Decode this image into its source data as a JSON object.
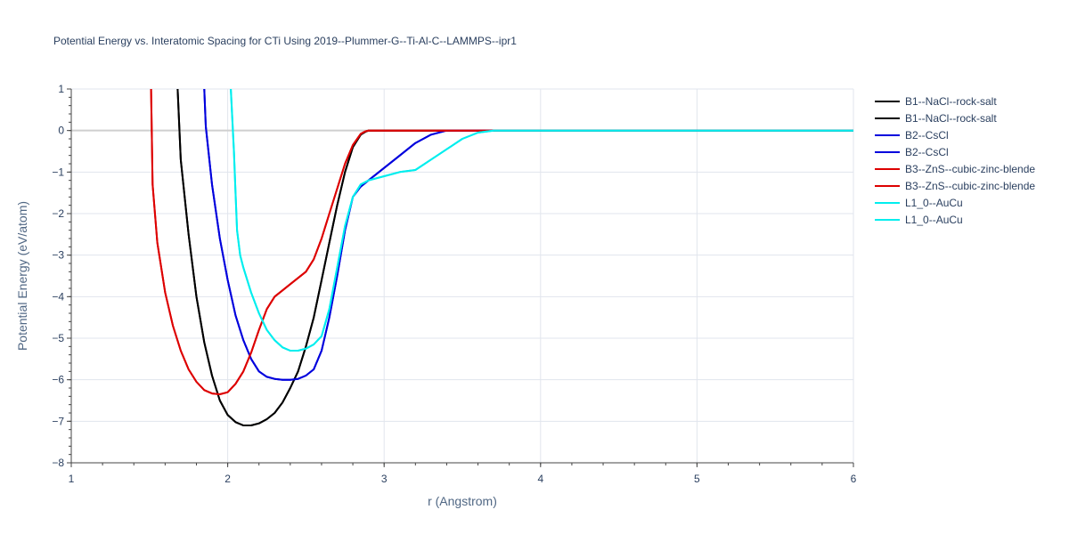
{
  "chart_data": {
    "type": "line",
    "title": "Potential Energy vs. Interatomic Spacing for CTi Using 2019--Plummer-G--Ti-Al-C--LAMMPS--ipr1",
    "xlabel": "r (Angstrom)",
    "ylabel": "Potential Energy (eV/atom)",
    "xlim": [
      1,
      6
    ],
    "ylim": [
      -8,
      1
    ],
    "xticks": [
      "1",
      "2",
      "3",
      "4",
      "5",
      "6"
    ],
    "yticks": [
      "1",
      "0",
      "−1",
      "−2",
      "−3",
      "−4",
      "−5",
      "−6",
      "−7",
      "−8"
    ],
    "grid": true,
    "legend_position": "right",
    "series": [
      {
        "name": "B1--NaCl--rock-salt",
        "color": "#000000",
        "x": [
          1.68,
          1.7,
          1.75,
          1.8,
          1.85,
          1.9,
          1.95,
          2.0,
          2.05,
          2.1,
          2.15,
          2.2,
          2.25,
          2.3,
          2.35,
          2.4,
          2.45,
          2.5,
          2.55,
          2.6,
          2.65,
          2.7,
          2.75,
          2.8,
          2.85,
          2.88,
          2.9,
          2.92,
          3.0,
          3.5,
          4.0,
          5.0,
          6.0
        ],
        "y": [
          1.0,
          -0.7,
          -2.5,
          -4.0,
          -5.1,
          -5.9,
          -6.5,
          -6.85,
          -7.02,
          -7.1,
          -7.1,
          -7.05,
          -6.95,
          -6.8,
          -6.55,
          -6.2,
          -5.8,
          -5.2,
          -4.5,
          -3.6,
          -2.7,
          -1.8,
          -1.0,
          -0.4,
          -0.1,
          -0.03,
          0.0,
          0.0,
          0.0,
          0.0,
          0.0,
          0.0,
          0.0
        ]
      },
      {
        "name": "B1--NaCl--rock-salt",
        "color": "#000000",
        "x": [
          1.68,
          1.7,
          1.75,
          1.8,
          1.85,
          1.9,
          1.95,
          2.0,
          2.05,
          2.1,
          2.15,
          2.2,
          2.25,
          2.3,
          2.35,
          2.4,
          2.45,
          2.5,
          2.55,
          2.6,
          2.65,
          2.7,
          2.75,
          2.8,
          2.85,
          2.88,
          2.9,
          2.92,
          3.0,
          3.5,
          4.0,
          5.0,
          6.0
        ],
        "y": [
          1.0,
          -0.7,
          -2.5,
          -4.0,
          -5.1,
          -5.9,
          -6.5,
          -6.85,
          -7.02,
          -7.1,
          -7.1,
          -7.05,
          -6.95,
          -6.8,
          -6.55,
          -6.2,
          -5.8,
          -5.2,
          -4.5,
          -3.6,
          -2.7,
          -1.8,
          -1.0,
          -0.4,
          -0.1,
          -0.03,
          0.0,
          0.0,
          0.0,
          0.0,
          0.0,
          0.0,
          0.0
        ]
      },
      {
        "name": "B2--CsCl",
        "color": "#0000dd",
        "x": [
          1.85,
          1.86,
          1.9,
          1.95,
          2.0,
          2.05,
          2.1,
          2.15,
          2.2,
          2.25,
          2.3,
          2.35,
          2.4,
          2.45,
          2.5,
          2.55,
          2.6,
          2.65,
          2.7,
          2.75,
          2.8,
          2.85,
          2.9,
          3.0,
          3.1,
          3.2,
          3.3,
          3.4,
          3.5,
          4.0,
          5.0,
          6.0
        ],
        "y": [
          1.0,
          0.1,
          -1.3,
          -2.6,
          -3.6,
          -4.45,
          -5.05,
          -5.5,
          -5.8,
          -5.93,
          -5.98,
          -6.0,
          -6.0,
          -5.98,
          -5.9,
          -5.75,
          -5.3,
          -4.5,
          -3.5,
          -2.4,
          -1.6,
          -1.35,
          -1.2,
          -0.9,
          -0.6,
          -0.3,
          -0.1,
          0.0,
          0.0,
          0.0,
          0.0,
          0.0
        ]
      },
      {
        "name": "B2--CsCl",
        "color": "#0000dd",
        "x": [
          1.85,
          1.86,
          1.9,
          1.95,
          2.0,
          2.05,
          2.1,
          2.15,
          2.2,
          2.25,
          2.3,
          2.35,
          2.4,
          2.45,
          2.5,
          2.55,
          2.6,
          2.65,
          2.7,
          2.75,
          2.8,
          2.85,
          2.9,
          3.0,
          3.1,
          3.2,
          3.3,
          3.4,
          3.5,
          4.0,
          5.0,
          6.0
        ],
        "y": [
          1.0,
          0.1,
          -1.3,
          -2.6,
          -3.6,
          -4.45,
          -5.05,
          -5.5,
          -5.8,
          -5.93,
          -5.98,
          -6.0,
          -6.0,
          -5.98,
          -5.9,
          -5.75,
          -5.3,
          -4.5,
          -3.5,
          -2.4,
          -1.6,
          -1.35,
          -1.2,
          -0.9,
          -0.6,
          -0.3,
          -0.1,
          0.0,
          0.0,
          0.0,
          0.0,
          0.0
        ]
      },
      {
        "name": "B3--ZnS--cubic-zinc-blende",
        "color": "#dd0000",
        "x": [
          1.51,
          1.52,
          1.55,
          1.6,
          1.65,
          1.7,
          1.75,
          1.8,
          1.85,
          1.9,
          1.95,
          2.0,
          2.05,
          2.1,
          2.15,
          2.2,
          2.25,
          2.3,
          2.35,
          2.4,
          2.45,
          2.5,
          2.55,
          2.6,
          2.65,
          2.7,
          2.75,
          2.8,
          2.85,
          2.88,
          2.9,
          3.0,
          3.5,
          4.0,
          5.0,
          6.0
        ],
        "y": [
          1.0,
          -1.3,
          -2.7,
          -3.9,
          -4.7,
          -5.3,
          -5.75,
          -6.05,
          -6.25,
          -6.33,
          -6.35,
          -6.3,
          -6.1,
          -5.8,
          -5.35,
          -4.8,
          -4.3,
          -4.0,
          -3.85,
          -3.7,
          -3.55,
          -3.4,
          -3.1,
          -2.6,
          -2.0,
          -1.4,
          -0.8,
          -0.35,
          -0.08,
          -0.02,
          0.0,
          0.0,
          0.0,
          0.0,
          0.0,
          0.0
        ]
      },
      {
        "name": "B3--ZnS--cubic-zinc-blende",
        "color": "#dd0000",
        "x": [
          1.51,
          1.52,
          1.55,
          1.6,
          1.65,
          1.7,
          1.75,
          1.8,
          1.85,
          1.9,
          1.95,
          2.0,
          2.05,
          2.1,
          2.15,
          2.2,
          2.25,
          2.3,
          2.35,
          2.4,
          2.45,
          2.5,
          2.55,
          2.6,
          2.65,
          2.7,
          2.75,
          2.8,
          2.85,
          2.88,
          2.9,
          3.0,
          3.5,
          4.0,
          5.0,
          6.0
        ],
        "y": [
          1.0,
          -1.3,
          -2.7,
          -3.9,
          -4.7,
          -5.3,
          -5.75,
          -6.05,
          -6.25,
          -6.33,
          -6.35,
          -6.3,
          -6.1,
          -5.8,
          -5.35,
          -4.8,
          -4.3,
          -4.0,
          -3.85,
          -3.7,
          -3.55,
          -3.4,
          -3.1,
          -2.6,
          -2.0,
          -1.4,
          -0.8,
          -0.35,
          -0.08,
          -0.02,
          0.0,
          0.0,
          0.0,
          0.0,
          0.0,
          0.0
        ]
      },
      {
        "name": "L1_0--AuCu",
        "color": "#00eeee",
        "x": [
          2.02,
          2.04,
          2.05,
          2.06,
          2.08,
          2.1,
          2.15,
          2.2,
          2.25,
          2.3,
          2.35,
          2.4,
          2.45,
          2.5,
          2.55,
          2.6,
          2.65,
          2.7,
          2.75,
          2.8,
          2.85,
          2.9,
          3.0,
          3.1,
          3.2,
          3.3,
          3.4,
          3.5,
          3.6,
          3.7,
          4.0,
          5.0,
          6.0
        ],
        "y": [
          1.0,
          -0.5,
          -1.5,
          -2.4,
          -3.0,
          -3.3,
          -3.9,
          -4.4,
          -4.8,
          -5.05,
          -5.22,
          -5.3,
          -5.3,
          -5.25,
          -5.15,
          -4.95,
          -4.3,
          -3.3,
          -2.3,
          -1.6,
          -1.3,
          -1.2,
          -1.1,
          -1.0,
          -0.95,
          -0.7,
          -0.45,
          -0.2,
          -0.05,
          0.0,
          0.0,
          0.0,
          0.0
        ]
      },
      {
        "name": "L1_0--AuCu",
        "color": "#00eeee",
        "x": [
          2.02,
          2.04,
          2.05,
          2.06,
          2.08,
          2.1,
          2.15,
          2.2,
          2.25,
          2.3,
          2.35,
          2.4,
          2.45,
          2.5,
          2.55,
          2.6,
          2.65,
          2.7,
          2.75,
          2.8,
          2.85,
          2.9,
          3.0,
          3.1,
          3.2,
          3.3,
          3.4,
          3.5,
          3.6,
          3.7,
          4.0,
          5.0,
          6.0
        ],
        "y": [
          1.0,
          -0.5,
          -1.5,
          -2.4,
          -3.0,
          -3.3,
          -3.9,
          -4.4,
          -4.8,
          -5.05,
          -5.22,
          -5.3,
          -5.3,
          -5.25,
          -5.15,
          -4.95,
          -4.3,
          -3.3,
          -2.3,
          -1.6,
          -1.3,
          -1.2,
          -1.1,
          -1.0,
          -0.95,
          -0.7,
          -0.45,
          -0.2,
          -0.05,
          0.0,
          0.0,
          0.0,
          0.0
        ]
      }
    ]
  }
}
